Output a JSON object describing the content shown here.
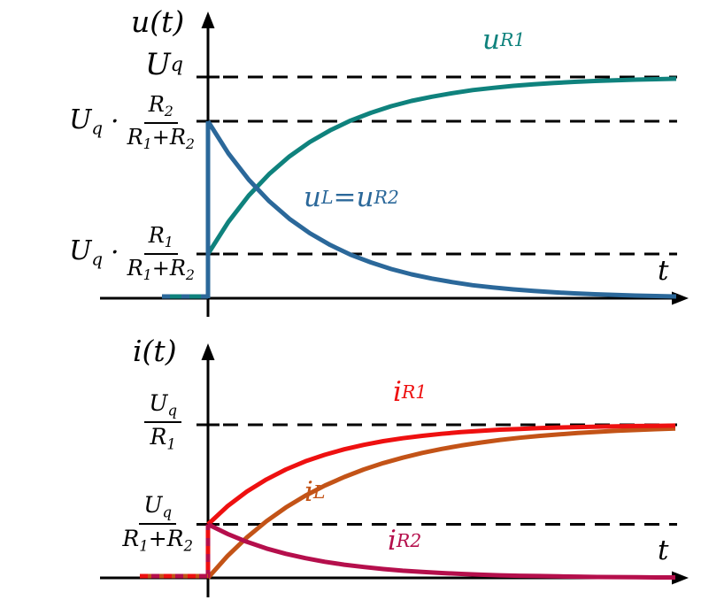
{
  "math": {
    "u_axis": "u(t)",
    "i_axis": "i(t)",
    "t_axis": "t",
    "cdot": "·",
    "Uq": [
      {
        "t": "U"
      },
      {
        "t": "q",
        "sub": true
      }
    ],
    "R1": [
      {
        "t": "R"
      },
      {
        "t": "1",
        "sub": true
      }
    ],
    "R2": [
      {
        "t": "R"
      },
      {
        "t": "2",
        "sub": true
      }
    ],
    "R1plusR2": [
      {
        "t": "R"
      },
      {
        "t": "1",
        "sub": true
      },
      {
        "t": "+"
      },
      {
        "t": "R"
      },
      {
        "t": "2",
        "sub": true
      }
    ],
    "uR1": [
      {
        "t": "u"
      },
      {
        "t": "R1",
        "sub": true
      }
    ],
    "uLuR2": [
      {
        "t": "u"
      },
      {
        "t": "L",
        "sub": true
      },
      {
        "t": " = "
      },
      {
        "t": "u"
      },
      {
        "t": "R2",
        "sub": true
      }
    ],
    "iR1": [
      {
        "t": "i"
      },
      {
        "t": "R1",
        "sub": true
      }
    ],
    "iL": [
      {
        "t": "i"
      },
      {
        "t": "L",
        "sub": true
      }
    ],
    "iR2": [
      {
        "t": "i"
      },
      {
        "t": "R2",
        "sub": true
      }
    ]
  },
  "chart_data": [
    {
      "type": "line",
      "title": "",
      "ylabel": "u(t)",
      "xlabel": "t",
      "xlim": [
        -0.5,
        4.6
      ],
      "ylim": [
        0,
        1.25
      ],
      "grid": false,
      "x_unit": "t in multiples of tau (no numeric ticks shown)",
      "y_unit": "voltage relative to Uq",
      "levels": [
        {
          "value": 1.0,
          "label": "U_q"
        },
        {
          "value": 0.8,
          "label": "U_q · R_2/(R_1+R_2)"
        },
        {
          "value": 0.2,
          "label": "U_q · R_1/(R_1+R_2)"
        }
      ],
      "series": [
        {
          "name": "u_R1",
          "color": "#0f827d",
          "jump_from": 0,
          "points": [
            [
              0,
              0.2
            ],
            [
              0.2,
              0.345
            ],
            [
              0.4,
              0.464
            ],
            [
              0.6,
              0.561
            ],
            [
              0.8,
              0.641
            ],
            [
              1,
              0.706
            ],
            [
              1.2,
              0.759
            ],
            [
              1.4,
              0.803
            ],
            [
              1.6,
              0.838
            ],
            [
              1.8,
              0.868
            ],
            [
              2,
              0.892
            ],
            [
              2.2,
              0.911
            ],
            [
              2.4,
              0.927
            ],
            [
              2.6,
              0.941
            ],
            [
              2.8,
              0.951
            ],
            [
              3,
              0.96
            ],
            [
              3.2,
              0.967
            ],
            [
              3.4,
              0.973
            ],
            [
              3.6,
              0.978
            ],
            [
              3.8,
              0.982
            ],
            [
              4,
              0.985
            ],
            [
              4.2,
              0.988
            ],
            [
              4.4,
              0.99
            ],
            [
              4.6,
              0.992
            ]
          ]
        },
        {
          "name": "u_L = u_R2",
          "color": "#2b689a",
          "jump_from": 0,
          "points": [
            [
              0,
              0.8
            ],
            [
              0.2,
              0.655
            ],
            [
              0.4,
              0.536
            ],
            [
              0.6,
              0.439
            ],
            [
              0.8,
              0.359
            ],
            [
              1,
              0.294
            ],
            [
              1.2,
              0.241
            ],
            [
              1.4,
              0.197
            ],
            [
              1.6,
              0.162
            ],
            [
              1.8,
              0.132
            ],
            [
              2,
              0.108
            ],
            [
              2.2,
              0.089
            ],
            [
              2.4,
              0.073
            ],
            [
              2.6,
              0.059
            ],
            [
              2.8,
              0.049
            ],
            [
              3,
              0.04
            ],
            [
              3.2,
              0.033
            ],
            [
              3.4,
              0.027
            ],
            [
              3.6,
              0.022
            ],
            [
              3.8,
              0.018
            ],
            [
              4,
              0.015
            ],
            [
              4.2,
              0.012
            ],
            [
              4.4,
              0.01
            ],
            [
              4.6,
              0.008
            ]
          ]
        }
      ]
    },
    {
      "type": "line",
      "title": "",
      "ylabel": "i(t)",
      "xlabel": "t",
      "xlim": [
        -0.7,
        4.8
      ],
      "ylim": [
        0,
        1.35
      ],
      "grid": false,
      "x_unit": "t in multiples of tau (no numeric ticks shown)",
      "y_unit": "current relative to Uq/R1",
      "levels": [
        {
          "value": 1.0,
          "label": "U_q/R_1"
        },
        {
          "value": 0.35,
          "label": "U_q/(R_1+R_2)"
        }
      ],
      "series": [
        {
          "name": "i_R1",
          "color": "#ee1010",
          "jump_from": 0,
          "points": [
            [
              0,
              0.35
            ],
            [
              0.2,
              0.468
            ],
            [
              0.4,
              0.564
            ],
            [
              0.6,
              0.643
            ],
            [
              0.8,
              0.708
            ],
            [
              1,
              0.761
            ],
            [
              1.2,
              0.804
            ],
            [
              1.4,
              0.84
            ],
            [
              1.6,
              0.869
            ],
            [
              1.8,
              0.893
            ],
            [
              2,
              0.912
            ],
            [
              2.2,
              0.928
            ],
            [
              2.4,
              0.941
            ],
            [
              2.6,
              0.952
            ],
            [
              2.8,
              0.96
            ],
            [
              3,
              0.968
            ],
            [
              3.2,
              0.973
            ],
            [
              3.4,
              0.978
            ],
            [
              3.6,
              0.982
            ],
            [
              3.8,
              0.985
            ],
            [
              4,
              0.988
            ],
            [
              4.2,
              0.99
            ],
            [
              4.4,
              0.992
            ],
            [
              4.6,
              0.993
            ],
            [
              4.8,
              0.995
            ]
          ]
        },
        {
          "name": "i_L",
          "color": "#c35317",
          "jump_from": null,
          "points": [
            [
              0,
              0
            ],
            [
              0.2,
              0.143
            ],
            [
              0.4,
              0.265
            ],
            [
              0.6,
              0.37
            ],
            [
              0.8,
              0.46
            ],
            [
              1,
              0.537
            ],
            [
              1.2,
              0.603
            ],
            [
              1.4,
              0.659
            ],
            [
              1.6,
              0.708
            ],
            [
              1.8,
              0.75
            ],
            [
              2,
              0.785
            ],
            [
              2.2,
              0.816
            ],
            [
              2.4,
              0.842
            ],
            [
              2.6,
              0.865
            ],
            [
              2.8,
              0.884
            ],
            [
              3,
              0.901
            ],
            [
              3.2,
              0.915
            ],
            [
              3.4,
              0.927
            ],
            [
              3.6,
              0.937
            ],
            [
              3.8,
              0.946
            ],
            [
              4,
              0.954
            ],
            [
              4.2,
              0.961
            ],
            [
              4.4,
              0.966
            ],
            [
              4.6,
              0.971
            ],
            [
              4.8,
              0.975
            ]
          ]
        },
        {
          "name": "i_R2",
          "color": "#b50f4c",
          "jump_from": 0,
          "points": [
            [
              0,
              0.35
            ],
            [
              0.2,
              0.287
            ],
            [
              0.4,
              0.235
            ],
            [
              0.6,
              0.192
            ],
            [
              0.8,
              0.157
            ],
            [
              1,
              0.129
            ],
            [
              1.2,
              0.105
            ],
            [
              1.4,
              0.086
            ],
            [
              1.6,
              0.071
            ],
            [
              1.8,
              0.058
            ],
            [
              2,
              0.047
            ],
            [
              2.2,
              0.039
            ],
            [
              2.4,
              0.032
            ],
            [
              2.6,
              0.026
            ],
            [
              2.8,
              0.021
            ],
            [
              3,
              0.017
            ],
            [
              3.2,
              0.014
            ],
            [
              3.4,
              0.012
            ],
            [
              3.6,
              0.01
            ],
            [
              3.8,
              0.008
            ],
            [
              4,
              0.006
            ],
            [
              4.2,
              0.005
            ],
            [
              4.4,
              0.004
            ],
            [
              4.6,
              0.003
            ],
            [
              4.8,
              0.003
            ]
          ]
        }
      ]
    }
  ]
}
